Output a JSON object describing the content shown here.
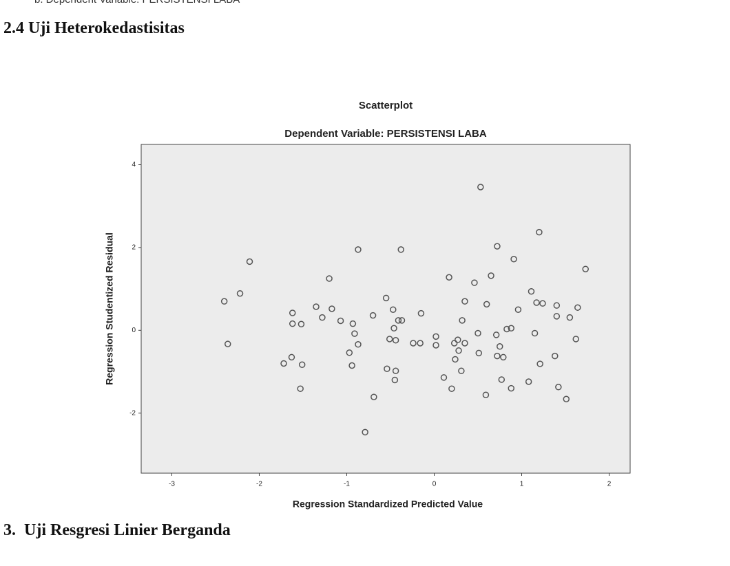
{
  "note": "b. Dependent Variable: PERSISTENSI LABA",
  "section_heading": "2.4 Uji Heterokedastisitas",
  "chart_data": {
    "type": "scatter",
    "title": "Scatterplot",
    "subtitle": "Dependent Variable: PERSISTENSI LABA",
    "x_label": "Regression Standardized Predicted Value",
    "y_label": "Regression Studentized Residual",
    "color": "#555555",
    "x": [
      -2.4,
      -2.36,
      -2.22,
      -2.11,
      -1.72,
      -1.62,
      -1.62,
      -1.53,
      -1.51,
      -1.52,
      -1.63,
      -1.35,
      -1.28,
      -1.2,
      -1.17,
      -1.07,
      -0.97,
      -0.94,
      -0.93,
      -0.91,
      -0.87,
      -0.87,
      -0.79,
      -0.7,
      -0.69,
      -0.55,
      -0.54,
      -0.51,
      -0.47,
      -0.46,
      -0.45,
      -0.44,
      -0.44,
      -0.41,
      -0.37,
      -0.38,
      -0.24,
      -0.16,
      -0.15,
      0.02,
      0.02,
      0.11,
      0.17,
      0.2,
      0.23,
      0.24,
      0.27,
      0.28,
      0.31,
      0.32,
      0.35,
      0.35,
      0.46,
      0.5,
      0.51,
      0.53,
      0.59,
      0.6,
      0.65,
      0.71,
      0.72,
      0.72,
      0.75,
      0.77,
      0.79,
      0.83,
      0.88,
      0.88,
      0.91,
      0.96,
      1.08,
      1.11,
      1.15,
      1.17,
      1.2,
      1.21,
      1.24,
      1.38,
      1.4,
      1.4,
      1.42,
      1.51,
      1.55,
      1.64,
      1.62,
      1.73
    ],
    "values": [
      0.7,
      -0.33,
      0.89,
      1.66,
      -0.8,
      0.42,
      0.16,
      -1.41,
      -0.83,
      0.15,
      -0.65,
      0.57,
      0.31,
      1.25,
      0.52,
      0.23,
      -0.54,
      -0.85,
      0.16,
      -0.08,
      -0.34,
      1.95,
      -2.46,
      0.36,
      -1.61,
      0.78,
      -0.93,
      -0.21,
      0.5,
      0.05,
      -1.2,
      -0.98,
      -0.24,
      0.24,
      0.24,
      1.95,
      -0.31,
      -0.31,
      0.41,
      -0.36,
      -0.15,
      -1.14,
      1.28,
      -1.41,
      -0.31,
      -0.7,
      -0.23,
      -0.49,
      -0.98,
      0.24,
      0.7,
      -0.31,
      1.15,
      -0.07,
      -0.55,
      3.46,
      -1.56,
      0.63,
      1.32,
      -0.11,
      -0.62,
      2.03,
      -0.39,
      -1.19,
      -0.65,
      0.03,
      0.05,
      -1.4,
      1.72,
      0.5,
      -1.24,
      0.94,
      -0.07,
      0.67,
      2.37,
      -0.81,
      0.65,
      -0.62,
      0.6,
      0.34,
      -1.37,
      -1.66,
      0.31,
      0.55,
      -0.21,
      1.48
    ],
    "xlim": [
      -3.35,
      2.24
    ],
    "ylim": [
      -3.45,
      4.49
    ],
    "xticks": [
      -3,
      -2,
      -1,
      0,
      1,
      2
    ],
    "yticks": [
      -2,
      0,
      2,
      4
    ]
  },
  "next_heading": "3.  Uji Resgresi Linier Berganda"
}
